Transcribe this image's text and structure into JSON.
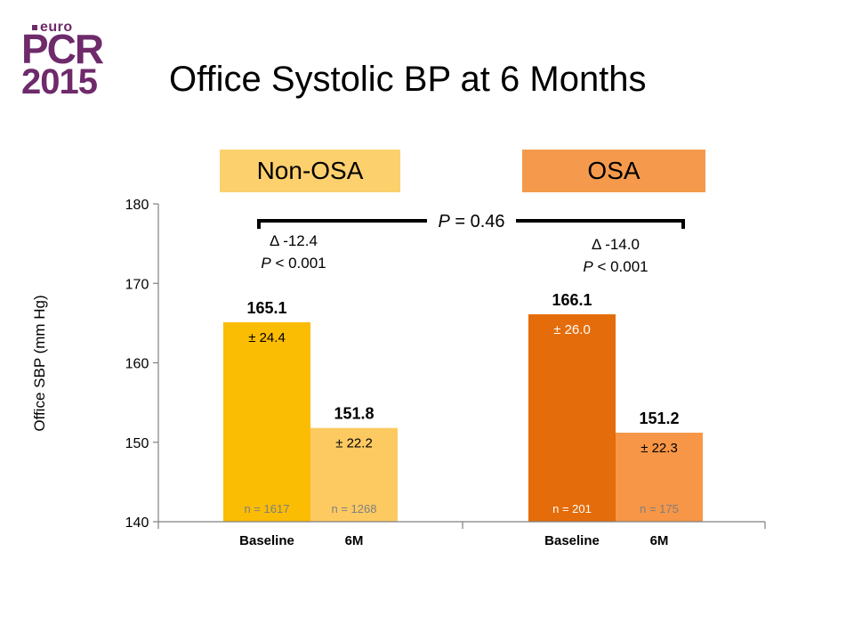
{
  "logo": {
    "euro": "euro",
    "pcr": "PCR",
    "year": "2015"
  },
  "title": "Office Systolic BP at 6 Months",
  "groups": [
    {
      "label": "Non-OSA",
      "color": "#fdd06e"
    },
    {
      "label": "OSA",
      "color": "#f59a4c"
    }
  ],
  "comparison": {
    "p_label": "P",
    "p_value": "= 0.46"
  },
  "deltas": [
    {
      "delta": "Δ -12.4",
      "p_label": "P",
      "p_value": "< 0.001"
    },
    {
      "delta": "Δ -14.0",
      "p_label": "P",
      "p_value": "< 0.001"
    }
  ],
  "colors": {
    "nonosa_baseline": "#fbbc04",
    "nonosa_6m": "#fdca62",
    "osa_baseline": "#e46c0a",
    "osa_6m": "#f79646",
    "axis": "#808080"
  },
  "chart_data": {
    "type": "bar",
    "title": "Office Systolic BP at 6 Months",
    "ylabel": "Office SBP (mm Hg)",
    "xlabel": "",
    "ylim": [
      140,
      180
    ],
    "yticks": [
      140,
      150,
      160,
      170,
      180
    ],
    "grid": false,
    "bars": [
      {
        "group": "Non-OSA",
        "category": "Baseline",
        "value": 165.1,
        "label": "165.1",
        "sd": "± 24.4",
        "n": "n = 1617",
        "color": "#fbbc04"
      },
      {
        "group": "Non-OSA",
        "category": "6M",
        "value": 151.8,
        "label": "151.8",
        "sd": "± 22.2",
        "n": "n = 1268",
        "color": "#fdca62"
      },
      {
        "group": "OSA",
        "category": "Baseline",
        "value": 166.1,
        "label": "166.1",
        "sd": "± 26.0",
        "n": "n = 201",
        "color": "#e46c0a"
      },
      {
        "group": "OSA",
        "category": "6M",
        "value": 151.2,
        "label": "151.2",
        "sd": "± 22.3",
        "n": "n = 175",
        "color": "#f79646"
      }
    ]
  }
}
